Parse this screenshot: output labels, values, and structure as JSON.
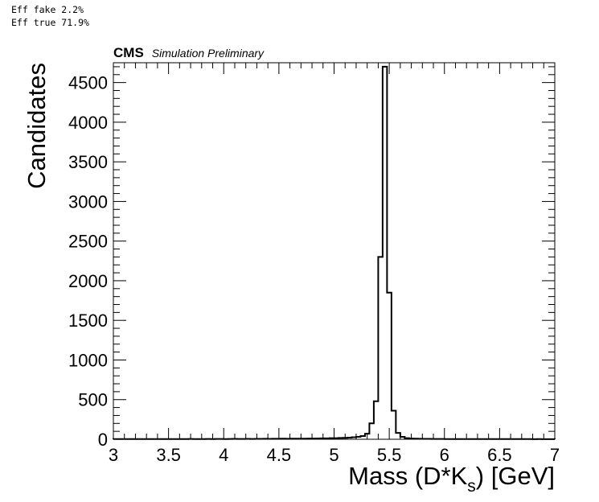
{
  "notes": {
    "eff_fake": "Eff fake 2.2%",
    "eff_true": "Eff true 71.9%"
  },
  "experiment": {
    "name": "CMS",
    "status": "Simulation Preliminary"
  },
  "chart_data": {
    "type": "bar",
    "style": "step-histogram",
    "xlabel_main": "Mass (D*K",
    "xlabel_sub": "s",
    "xlabel_tail": ") [GeV]",
    "ylabel": "Candidates",
    "xlim": [
      3,
      7
    ],
    "ylim": [
      0,
      4750
    ],
    "x_ticks": [
      "3",
      "3.5",
      "4",
      "4.5",
      "5",
      "5.5",
      "6",
      "6.5",
      "7"
    ],
    "x_tick_values": [
      3,
      3.5,
      4,
      4.5,
      5,
      5.5,
      6,
      6.5,
      7
    ],
    "y_ticks": [
      "0",
      "500",
      "1000",
      "1500",
      "2000",
      "2500",
      "3000",
      "3500",
      "4000",
      "4500"
    ],
    "y_tick_values": [
      0,
      500,
      1000,
      1500,
      2000,
      2500,
      3000,
      3500,
      4000,
      4500
    ],
    "bin_edges_start": 3.0,
    "bin_width": 0.04,
    "values": [
      3,
      2,
      3,
      2,
      3,
      2,
      2,
      3,
      2,
      3,
      3,
      2,
      3,
      3,
      2,
      3,
      3,
      4,
      3,
      3,
      3,
      4,
      3,
      4,
      4,
      3,
      4,
      5,
      4,
      4,
      5,
      4,
      5,
      5,
      6,
      5,
      6,
      6,
      7,
      6,
      7,
      8,
      7,
      8,
      9,
      9,
      10,
      11,
      12,
      14,
      14,
      16,
      18,
      20,
      25,
      30,
      40,
      70,
      200,
      480,
      2300,
      4700,
      1850,
      360,
      80,
      30,
      14,
      9,
      7,
      6,
      5,
      5,
      4,
      4,
      4,
      3,
      3,
      3,
      3,
      3,
      3,
      3,
      2,
      3,
      3,
      2,
      2,
      3,
      2,
      2,
      2,
      2,
      2,
      2,
      2,
      1,
      2,
      1,
      1,
      1
    ],
    "grid": false,
    "legend": "none"
  }
}
